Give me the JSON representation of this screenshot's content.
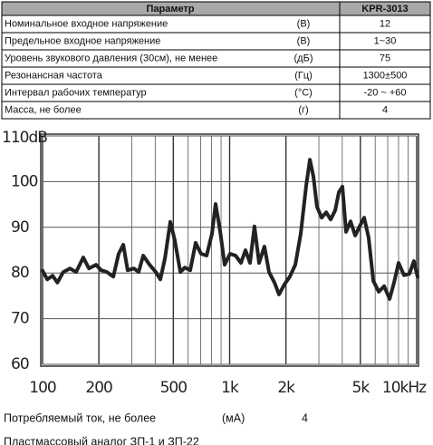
{
  "table": {
    "header": [
      "Параметр",
      "KPR-3013"
    ],
    "rows": [
      [
        "Номинальное входное напряжение",
        "(В)",
        "12"
      ],
      [
        "Предельное входное напряжение",
        "(В)",
        "1~30"
      ],
      [
        "Уровень звукового давления (30см), не менее",
        "(дБ)",
        "75"
      ],
      [
        "Резонансная частота",
        "(Гц)",
        "1300±500"
      ],
      [
        "Интервал рабочих температур",
        "(°С)",
        "-20 ~ +60"
      ],
      [
        "Масса, не более",
        "(г)",
        "4"
      ]
    ]
  },
  "chart_data": {
    "type": "line",
    "xscale": "log",
    "color": "#222222",
    "grid": true,
    "x": [
      100,
      106,
      113,
      120,
      129,
      140,
      151,
      165,
      177,
      193,
      206,
      221,
      239,
      255,
      270,
      285,
      308,
      326,
      345,
      373,
      403,
      426,
      451,
      482,
      509,
      545,
      576,
      616,
      658,
      703,
      753,
      805,
      841,
      890,
      940,
      1005,
      1075,
      1150,
      1216,
      1285,
      1358,
      1436,
      1535,
      1625,
      1737,
      1836,
      1963,
      2099,
      2244,
      2400,
      2566,
      2685,
      2805,
      2931,
      3105,
      3281,
      3468,
      3665,
      3837,
      4009,
      4191,
      4429,
      4688,
      4955,
      5236,
      5534,
      5860,
      6266,
      6699,
      7161,
      7568,
      8000,
      8551,
      9141,
      9661,
      10100
    ],
    "values": [
      80.5,
      78.6,
      79.4,
      77.9,
      80.2,
      81,
      80.2,
      83.4,
      81,
      81.8,
      80.6,
      80.2,
      79.2,
      84.2,
      86.2,
      80.6,
      81,
      80.2,
      83.8,
      81.8,
      80.2,
      78.6,
      83.2,
      91.2,
      87.2,
      80.2,
      81.2,
      80.6,
      86.6,
      84.2,
      83.8,
      88.6,
      95.1,
      89.2,
      81.8,
      84.2,
      83.8,
      82.2,
      85,
      82.2,
      90.2,
      82.2,
      85.8,
      80.2,
      77.9,
      75.3,
      77.5,
      79.2,
      81.8,
      88.6,
      99.1,
      104.8,
      101.1,
      94.5,
      92.1,
      93.3,
      91.7,
      93.7,
      97.7,
      98.9,
      89,
      91.3,
      88.2,
      90.2,
      92.1,
      87.8,
      78.3,
      75.9,
      77.1,
      74.3,
      77.9,
      82.2,
      79.5,
      79.8,
      82.6,
      79.2
    ],
    "xlim": [
      100,
      10000
    ],
    "ylim": [
      60,
      110
    ],
    "xticks": [
      100,
      200,
      500,
      {
        "value": 1000,
        "label": "1k"
      },
      {
        "value": 2000,
        "label": "2k"
      },
      {
        "value": 5000,
        "label": "5k"
      },
      {
        "value": 10000,
        "label": "10kHz"
      }
    ],
    "yticks": [
      60,
      70,
      80,
      90,
      100,
      {
        "value": 110,
        "label": "110dB"
      }
    ]
  },
  "footer": {
    "current": [
      "Потребляемый ток, не более",
      "(мА)",
      "4"
    ],
    "note": "Пластмассовый аналог ЗП-1 и ЗП-22"
  }
}
